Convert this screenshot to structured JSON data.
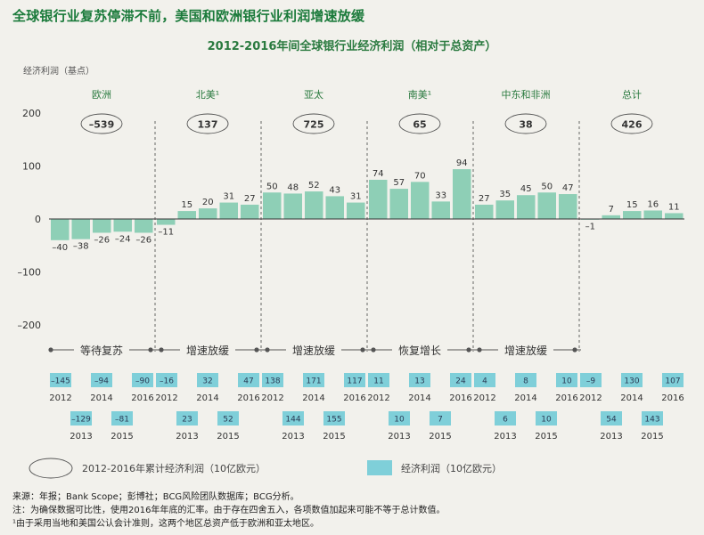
{
  "title": "全球银行业复苏停滞不前，美国和欧洲银行业利润增速放缓",
  "subtitle": "2012-2016年间全球银行业经济利润（相对于总资产）",
  "ylabel": "经济利润（基点）",
  "colors": {
    "bar": "#8ecfb6",
    "bar_stroke": "#ffffff",
    "value_box": "#7fcfd9",
    "value_text": "#2a3b55",
    "divider": "#444444",
    "title": "#1a7a3a"
  },
  "chart_data": {
    "type": "bar",
    "ylim": [
      -200,
      200
    ],
    "yticks": [
      200,
      100,
      0,
      -100,
      -200
    ],
    "ytick_labels": [
      "200",
      "100",
      "0",
      "–100",
      "–200"
    ],
    "groups": [
      {
        "name": "欧洲",
        "total": "–539",
        "phase": "等待复苏",
        "years": [
          "2012",
          "2013",
          "2014",
          "2015",
          "2016"
        ],
        "values": [
          -40,
          -38,
          -26,
          -24,
          -26
        ],
        "labels": [
          "–40",
          "–38",
          "–26",
          "–24",
          "–26"
        ],
        "profit_labels": [
          "–145",
          "–129",
          "–94",
          "–81",
          "–90"
        ]
      },
      {
        "name": "北美¹",
        "total": "137",
        "phase": "增速放缓",
        "years": [
          "2012",
          "2013",
          "2014",
          "2015",
          "2016"
        ],
        "values": [
          -11,
          15,
          20,
          31,
          27
        ],
        "labels": [
          "–11",
          "15",
          "20",
          "31",
          "27"
        ],
        "profit_labels": [
          "–16",
          "23",
          "32",
          "52",
          "47"
        ]
      },
      {
        "name": "亚太",
        "total": "725",
        "phase": "增速放缓",
        "years": [
          "2012",
          "2013",
          "2014",
          "2015",
          "2016"
        ],
        "values": [
          50,
          48,
          52,
          43,
          31
        ],
        "labels": [
          "50",
          "48",
          "52",
          "43",
          "31"
        ],
        "profit_labels": [
          "138",
          "144",
          "171",
          "155",
          "117"
        ]
      },
      {
        "name": "南美¹",
        "total": "65",
        "phase": "恢复增长",
        "years": [
          "2012",
          "2013",
          "2014",
          "2015",
          "2016"
        ],
        "values": [
          74,
          57,
          70,
          33,
          94
        ],
        "labels": [
          "74",
          "57",
          "70",
          "33",
          "94"
        ],
        "profit_labels": [
          "11",
          "10",
          "13",
          "7",
          "24"
        ]
      },
      {
        "name": "中东和非洲",
        "total": "38",
        "phase": "增速放缓",
        "years": [
          "2012",
          "2013",
          "2014",
          "2015",
          "2016"
        ],
        "values": [
          27,
          35,
          45,
          50,
          47
        ],
        "labels": [
          "27",
          "35",
          "45",
          "50",
          "47"
        ],
        "profit_labels": [
          "4",
          "6",
          "8",
          "10",
          "10"
        ]
      },
      {
        "name": "总计",
        "total": "426",
        "phase": "",
        "years": [
          "2012",
          "2013",
          "2014",
          "2015",
          "2016"
        ],
        "values": [
          -1,
          7,
          15,
          16,
          11
        ],
        "labels": [
          "–1",
          "7",
          "15",
          "16",
          "11"
        ],
        "profit_labels": [
          "–9",
          "54",
          "130",
          "143",
          "107"
        ]
      }
    ]
  },
  "legend": {
    "cumulative": "2012-2016年累计经济利润（10亿欧元）",
    "profit": "经济利润（10亿欧元）"
  },
  "footer": {
    "source": "来源：年报；Bank Scope；彭博社；BCG风险团队数据库；BCG分析。",
    "note": "注：为确保数据可比性，使用2016年年底的汇率。由于存在四舍五入，各项数值加起来可能不等于总计数值。",
    "footnote": "¹由于采用当地和美国公认会计准则，这两个地区总资产低于欧洲和亚太地区。"
  }
}
